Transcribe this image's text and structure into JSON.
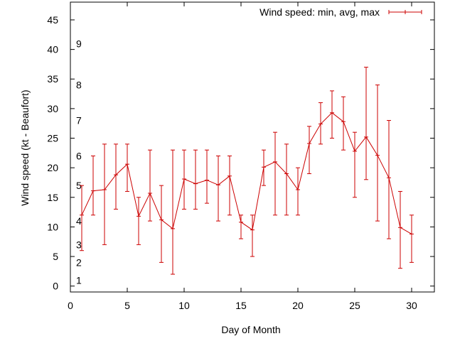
{
  "chart_data": {
    "type": "line",
    "title": "",
    "xlabel": "Day of Month",
    "ylabel": "Wind speed (kt - Beaufort)",
    "xlim": [
      0,
      32
    ],
    "ylim": [
      -1,
      48
    ],
    "x_ticks": [
      "0",
      "5",
      "10",
      "15",
      "20",
      "25",
      "30"
    ],
    "y_ticks": [
      "0",
      "5",
      "10",
      "15",
      "20",
      "25",
      "30",
      "35",
      "40",
      "45"
    ],
    "beaufort_labels": [
      {
        "label": "1",
        "value": 1
      },
      {
        "label": "2",
        "value": 4
      },
      {
        "label": "3",
        "value": 7
      },
      {
        "label": "4",
        "value": 11
      },
      {
        "label": "5",
        "value": 17
      },
      {
        "label": "6",
        "value": 22
      },
      {
        "label": "7",
        "value": 28
      },
      {
        "label": "8",
        "value": 34
      },
      {
        "label": "9",
        "value": 41
      }
    ],
    "grid": false,
    "legend_position": "top-right",
    "colors": {
      "series": "#cc0000",
      "axes": "#000000"
    },
    "series": [
      {
        "name": "Wind speed: min, avg, max",
        "x": [
          1,
          2,
          3,
          4,
          5,
          6,
          7,
          8,
          9,
          10,
          11,
          12,
          13,
          14,
          15,
          16,
          17,
          18,
          19,
          20,
          21,
          22,
          23,
          24,
          25,
          26,
          27,
          28,
          29,
          30
        ],
        "avg": [
          12,
          16.1,
          16.3,
          18.8,
          20.6,
          11.8,
          15.7,
          11.2,
          9.7,
          18.1,
          17.3,
          17.9,
          17.1,
          18.6,
          10.8,
          9.5,
          20.1,
          21,
          19,
          16.3,
          24.1,
          27.4,
          29.3,
          27.8,
          22.8,
          25.2,
          22.1,
          18.3,
          9.9,
          8.8
        ],
        "min": [
          6,
          12,
          7,
          13,
          16,
          7,
          11,
          4,
          2,
          13,
          13,
          14,
          11,
          12,
          8,
          5,
          17,
          12,
          12,
          12,
          19,
          24,
          25,
          23,
          15,
          18,
          11,
          8,
          3,
          4
        ],
        "max": [
          17,
          22,
          24,
          24,
          24,
          15,
          23,
          17,
          23,
          23,
          23,
          23,
          22,
          22,
          12,
          12,
          23,
          26,
          24,
          20,
          27,
          31,
          33,
          32,
          26,
          37,
          34,
          28,
          16,
          12
        ]
      }
    ]
  }
}
